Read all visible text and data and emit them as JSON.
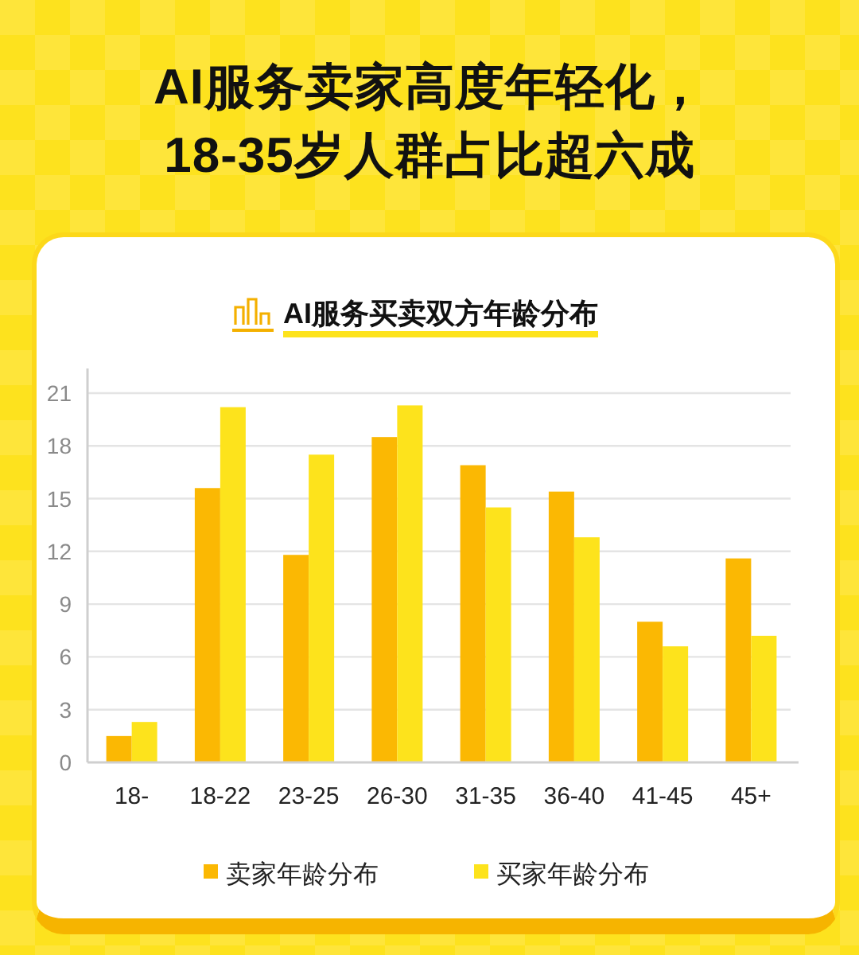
{
  "chart_data": {
    "type": "bar",
    "title": "AI服务卖家高度年轻化，\n18-35岁人群占比超六成",
    "subtitle": "AI服务买卖双方年龄分布",
    "categories": [
      "18-",
      "18-22",
      "23-25",
      "26-30",
      "31-35",
      "36-40",
      "41-45",
      "45+"
    ],
    "series": [
      {
        "name": "卖家年龄分布",
        "color": "#fbb803",
        "values": [
          1.5,
          15.6,
          11.8,
          18.5,
          16.9,
          15.4,
          8.0,
          11.6
        ]
      },
      {
        "name": "买家年龄分布",
        "color": "#fde31c",
        "values": [
          2.3,
          20.2,
          17.5,
          20.3,
          14.5,
          12.8,
          6.6,
          7.2
        ]
      }
    ],
    "ylim": [
      0,
      22.4
    ],
    "yticks": [
      0,
      3,
      6,
      9,
      12,
      15,
      18,
      21
    ],
    "grid": "y",
    "legend": "bottom"
  }
}
